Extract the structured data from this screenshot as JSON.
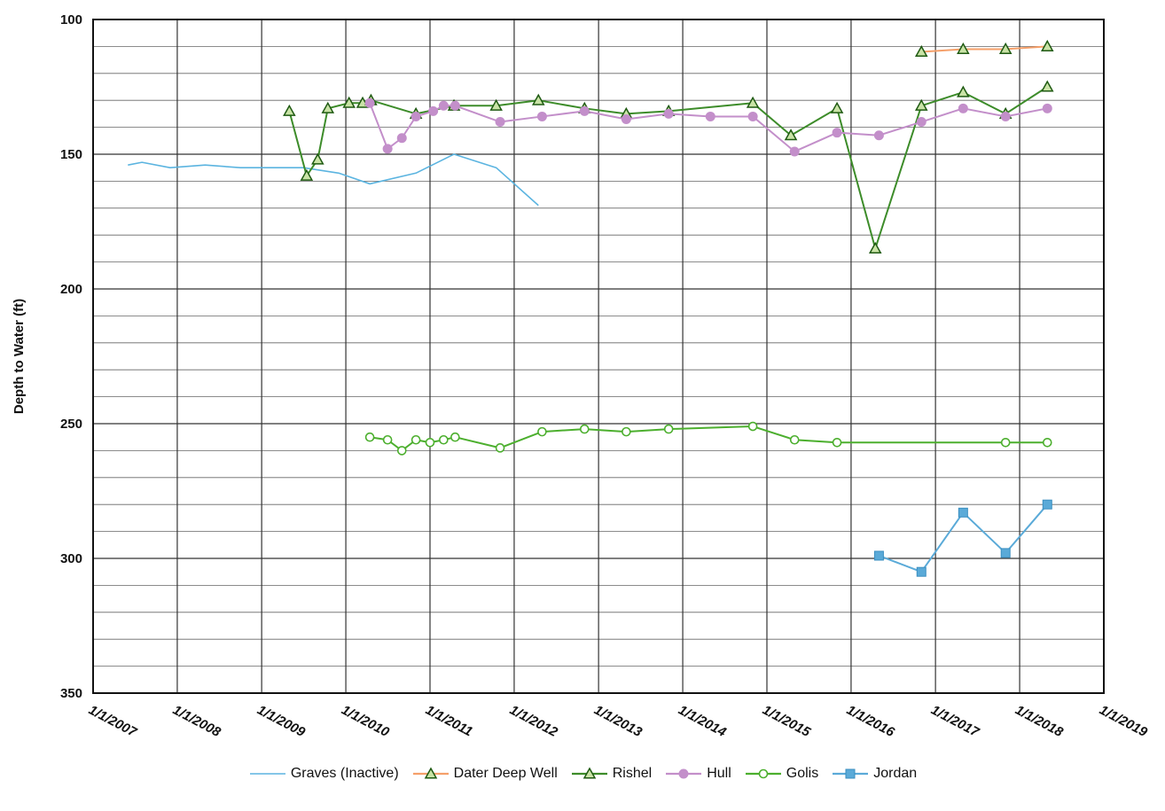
{
  "chart_data": {
    "type": "line",
    "title": "",
    "xlabel": "",
    "ylabel": "Depth to Water (ft)",
    "ylim": [
      350,
      100
    ],
    "y_inverted": true,
    "y_ticks": [
      100,
      150,
      200,
      250,
      300,
      350
    ],
    "x_ticks": [
      "1/1/2007",
      "1/1/2008",
      "1/1/2009",
      "1/1/2010",
      "1/1/2011",
      "1/1/2012",
      "1/1/2013",
      "1/1/2014",
      "1/1/2015",
      "1/1/2016",
      "1/1/2017",
      "1/1/2018",
      "1/1/2019"
    ],
    "xlim": [
      "1/1/2007",
      "1/1/2019"
    ],
    "grid": true,
    "legend_position": "bottom",
    "series": [
      {
        "name": "Graves (Inactive)",
        "color": "#5bb4e0",
        "marker": "none",
        "points": [
          {
            "x": "2007-06-01",
            "y": 154
          },
          {
            "x": "2007-08-01",
            "y": 153
          },
          {
            "x": "2007-12-01",
            "y": 155
          },
          {
            "x": "2008-05-01",
            "y": 154
          },
          {
            "x": "2008-10-01",
            "y": 155
          },
          {
            "x": "2009-07-01",
            "y": 155
          },
          {
            "x": "2009-12-01",
            "y": 157
          },
          {
            "x": "2010-04-15",
            "y": 161
          },
          {
            "x": "2010-11-01",
            "y": 157
          },
          {
            "x": "2011-04-15",
            "y": 150
          },
          {
            "x": "2011-10-15",
            "y": 155
          },
          {
            "x": "2012-04-15",
            "y": 169
          }
        ]
      },
      {
        "name": "Dater Deep Well",
        "color": "#f5a06a",
        "marker": "triangle-open",
        "points": [
          {
            "x": "2016-11-01",
            "y": 112
          },
          {
            "x": "2017-05-01",
            "y": 111
          },
          {
            "x": "2017-11-01",
            "y": 111
          },
          {
            "x": "2018-05-01",
            "y": 110
          }
        ]
      },
      {
        "name": "Rishel",
        "color": "#3d8c2a",
        "marker": "triangle-open",
        "points": [
          {
            "x": "2009-05-01",
            "y": 134
          },
          {
            "x": "2009-07-15",
            "y": 158
          },
          {
            "x": "2009-09-01",
            "y": 152
          },
          {
            "x": "2009-10-15",
            "y": 133
          },
          {
            "x": "2010-01-15",
            "y": 131
          },
          {
            "x": "2010-03-15",
            "y": 131
          },
          {
            "x": "2010-04-20",
            "y": 130
          },
          {
            "x": "2010-11-01",
            "y": 135
          },
          {
            "x": "2011-04-15",
            "y": 132
          },
          {
            "x": "2011-10-15",
            "y": 132
          },
          {
            "x": "2012-04-15",
            "y": 130
          },
          {
            "x": "2012-11-01",
            "y": 133
          },
          {
            "x": "2013-05-01",
            "y": 135
          },
          {
            "x": "2013-11-01",
            "y": 134
          },
          {
            "x": "2014-11-01",
            "y": 131
          },
          {
            "x": "2015-04-15",
            "y": 143
          },
          {
            "x": "2015-11-01",
            "y": 133
          },
          {
            "x": "2016-04-15",
            "y": 185
          },
          {
            "x": "2016-11-01",
            "y": 132
          },
          {
            "x": "2017-05-01",
            "y": 127
          },
          {
            "x": "2017-11-01",
            "y": 135
          },
          {
            "x": "2018-05-01",
            "y": 125
          }
        ]
      },
      {
        "name": "Hull",
        "color": "#c38fca",
        "marker": "circle",
        "points": [
          {
            "x": "2010-04-15",
            "y": 131
          },
          {
            "x": "2010-07-01",
            "y": 148
          },
          {
            "x": "2010-09-01",
            "y": 144
          },
          {
            "x": "2010-11-01",
            "y": 136
          },
          {
            "x": "2011-01-15",
            "y": 134
          },
          {
            "x": "2011-03-01",
            "y": 132
          },
          {
            "x": "2011-04-20",
            "y": 132
          },
          {
            "x": "2011-11-01",
            "y": 138
          },
          {
            "x": "2012-05-01",
            "y": 136
          },
          {
            "x": "2012-11-01",
            "y": 134
          },
          {
            "x": "2013-05-01",
            "y": 137
          },
          {
            "x": "2013-11-01",
            "y": 135
          },
          {
            "x": "2014-05-01",
            "y": 136
          },
          {
            "x": "2014-11-01",
            "y": 136
          },
          {
            "x": "2015-05-01",
            "y": 149
          },
          {
            "x": "2015-11-01",
            "y": 142
          },
          {
            "x": "2016-05-01",
            "y": 143
          },
          {
            "x": "2016-11-01",
            "y": 138
          },
          {
            "x": "2017-05-01",
            "y": 133
          },
          {
            "x": "2017-11-01",
            "y": 136
          },
          {
            "x": "2018-05-01",
            "y": 133
          }
        ]
      },
      {
        "name": "Golis",
        "color": "#4caf2e",
        "marker": "circle-open",
        "points": [
          {
            "x": "2010-04-15",
            "y": 255
          },
          {
            "x": "2010-07-01",
            "y": 256
          },
          {
            "x": "2010-09-01",
            "y": 260
          },
          {
            "x": "2010-11-01",
            "y": 256
          },
          {
            "x": "2011-01-01",
            "y": 257
          },
          {
            "x": "2011-03-01",
            "y": 256
          },
          {
            "x": "2011-04-20",
            "y": 255
          },
          {
            "x": "2011-11-01",
            "y": 259
          },
          {
            "x": "2012-05-01",
            "y": 253
          },
          {
            "x": "2012-11-01",
            "y": 252
          },
          {
            "x": "2013-05-01",
            "y": 253
          },
          {
            "x": "2013-11-01",
            "y": 252
          },
          {
            "x": "2014-11-01",
            "y": 251
          },
          {
            "x": "2015-05-01",
            "y": 256
          },
          {
            "x": "2015-11-01",
            "y": 257
          },
          {
            "x": "2017-11-01",
            "y": 257
          },
          {
            "x": "2018-05-01",
            "y": 257
          }
        ]
      },
      {
        "name": "Jordan",
        "color": "#5aaad8",
        "marker": "square",
        "points": [
          {
            "x": "2016-05-01",
            "y": 299
          },
          {
            "x": "2016-11-01",
            "y": 305
          },
          {
            "x": "2017-05-01",
            "y": 283
          },
          {
            "x": "2017-11-01",
            "y": 298
          },
          {
            "x": "2018-05-01",
            "y": 280
          }
        ]
      }
    ]
  }
}
